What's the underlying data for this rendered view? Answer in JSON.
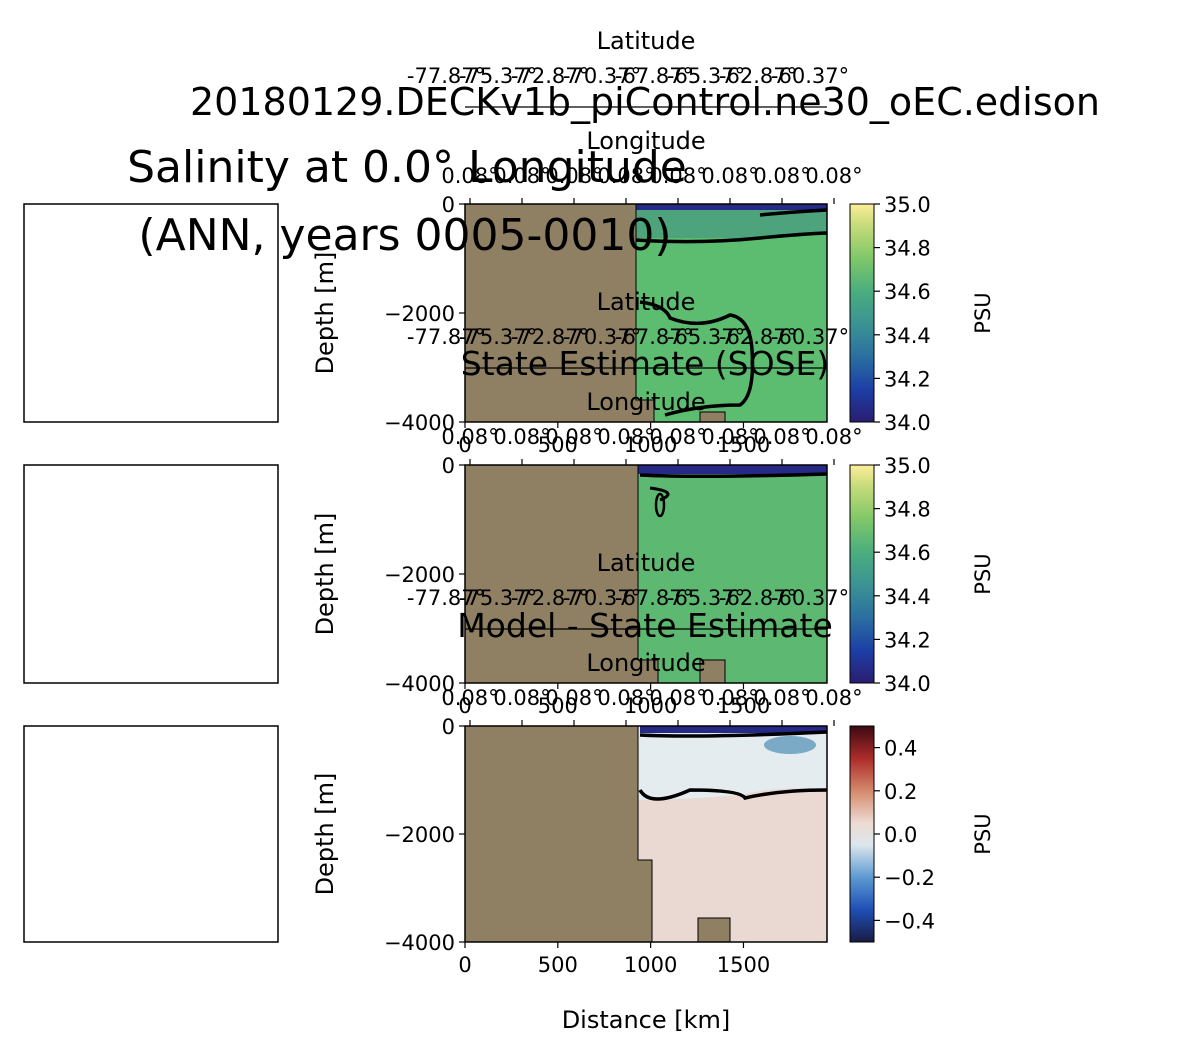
{
  "colors": {
    "land": "#8f8064",
    "contour": "#000000",
    "ocean_fill": "#5cbc6f",
    "ocean_fill_sose": "#5db971",
    "diff_fill": "#ead9d2",
    "diff_upper": "#e4ecf0",
    "diff_blue": "#7aaac6",
    "fresh_surface": "#262a86"
  },
  "chart_data": {
    "type": "heatmap",
    "suptitle": "20180129.DECKv1b_piControl.ne30_oEC.edison",
    "main_title_lines": [
      "Salinity at 0.0° Longitude",
      "(ANN, years 0005-0010)"
    ],
    "xlabel": "Distance [km]",
    "ylabel": "Depth [m]",
    "xlim": [
      0,
      1950
    ],
    "ylim": [
      -4000,
      0
    ],
    "xticks": [
      0,
      500,
      1000,
      1500
    ],
    "yticks": [
      0,
      -2000,
      -4000
    ],
    "ytick_labels": [
      "0",
      "−2000",
      "−4000"
    ],
    "secondary_axes": {
      "latitude_label": "Latitude",
      "latitude_ticks": [
        "-77.87°",
        "-75.37°",
        "-72.87°",
        "-70.37°",
        "-67.87°",
        "-65.37°",
        "-62.87°",
        "-60.37°"
      ],
      "longitude_label": "Longitude",
      "longitude_ticks": [
        "0.08°",
        "0.08°",
        "0.08°",
        "0.08°",
        "0.08°",
        "0.08°",
        "0.08°",
        "0.08°"
      ]
    },
    "panels": [
      {
        "title": "",
        "colorbar_label": "PSU",
        "clim": [
          34.0,
          35.0
        ],
        "colorbar_ticks": [
          "35.0",
          "34.8",
          "34.6",
          "34.4",
          "34.2",
          "34.0"
        ],
        "colormap": "haline",
        "shelf_edge_km": 930,
        "contour_depths_m": [
          -300,
          -1800
        ]
      },
      {
        "title": "State Estimate (SOSE)",
        "colorbar_label": "PSU",
        "clim": [
          34.0,
          35.0
        ],
        "colorbar_ticks": [
          "35.0",
          "34.8",
          "34.6",
          "34.4",
          "34.2",
          "34.0"
        ],
        "colormap": "haline",
        "shelf_edge_km": 940,
        "contour_depths_m": [
          -150,
          -200
        ]
      },
      {
        "title": "Model - State Estimate",
        "colorbar_label": "PSU",
        "clim": [
          -0.5,
          0.5
        ],
        "colorbar_ticks": [
          "0.4",
          "0.2",
          "0.0",
          "−0.2",
          "−0.4"
        ],
        "colormap": "balance",
        "shelf_edge_km": 930,
        "contour_depths_m": [
          -350,
          -1500
        ]
      }
    ]
  }
}
